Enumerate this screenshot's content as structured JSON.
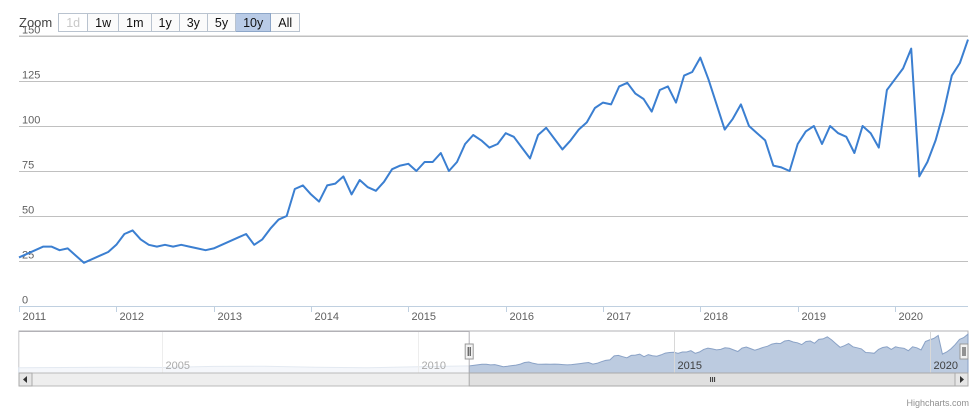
{
  "rangeSelector": {
    "label": "Zoom",
    "buttons": [
      {
        "label": "1d",
        "state": "disabled"
      },
      {
        "label": "1w",
        "state": "normal"
      },
      {
        "label": "1m",
        "state": "normal"
      },
      {
        "label": "1y",
        "state": "normal"
      },
      {
        "label": "3y",
        "state": "normal"
      },
      {
        "label": "5y",
        "state": "normal"
      },
      {
        "label": "10y",
        "state": "selected"
      },
      {
        "label": "All",
        "state": "normal"
      }
    ]
  },
  "credit": "Highcharts.com",
  "colors": {
    "line": "#3b7fd1",
    "grid": "#c0c0c0",
    "navigatorFill": "#bccbe0",
    "navigatorLine": "#8aa2c6",
    "outlineFill": "#e9eef5",
    "outlineLine": "#c2cfdf"
  },
  "chart_data": {
    "type": "line",
    "title": "",
    "xlabel": "",
    "ylabel": "",
    "xlim": [
      "2011-01-01",
      "2020-10-01"
    ],
    "ylim": [
      0,
      150
    ],
    "y_ticks": [
      0,
      25,
      50,
      75,
      100,
      125,
      150
    ],
    "x_ticks": [
      "2011",
      "2012",
      "2013",
      "2014",
      "2015",
      "2016",
      "2017",
      "2018",
      "2019",
      "2020"
    ],
    "grid": true,
    "legend": "none",
    "series": [
      {
        "x": [
          "2011-01-01",
          "2011-02-01",
          "2011-04-01",
          "2011-05-01",
          "2011-06-01",
          "2011-07-01",
          "2011-08-01",
          "2011-09-01",
          "2011-10-01",
          "2011-11-01",
          "2011-12-01",
          "2012-01-01",
          "2012-02-01",
          "2012-03-01",
          "2012-04-01",
          "2012-05-01",
          "2012-06-01",
          "2012-07-01",
          "2012-08-01",
          "2012-09-01",
          "2012-10-01",
          "2012-11-01",
          "2012-12-01",
          "2013-01-01",
          "2013-02-01",
          "2013-03-01",
          "2013-04-01",
          "2013-05-01",
          "2013-06-01",
          "2013-07-01",
          "2013-08-01",
          "2013-09-01",
          "2013-10-01",
          "2013-11-01",
          "2013-12-01",
          "2014-01-01",
          "2014-02-01",
          "2014-03-01",
          "2014-04-01",
          "2014-05-01",
          "2014-06-01",
          "2014-07-01",
          "2014-08-01",
          "2014-09-01",
          "2014-10-01",
          "2014-11-01",
          "2014-12-01",
          "2015-01-01",
          "2015-02-01",
          "2015-03-01",
          "2015-04-01",
          "2015-05-01",
          "2015-06-01",
          "2015-07-01",
          "2015-08-01",
          "2015-09-01",
          "2015-10-01",
          "2015-11-01",
          "2015-12-01",
          "2016-01-01",
          "2016-02-01",
          "2016-03-01",
          "2016-04-01",
          "2016-05-01",
          "2016-06-01",
          "2016-07-01",
          "2016-08-01",
          "2016-09-01",
          "2016-10-01",
          "2016-11-01",
          "2016-12-01",
          "2017-01-01",
          "2017-02-01",
          "2017-03-01",
          "2017-04-01",
          "2017-05-01",
          "2017-06-01",
          "2017-07-01",
          "2017-08-01",
          "2017-09-01",
          "2017-10-01",
          "2017-11-01",
          "2017-12-01",
          "2018-01-01",
          "2018-02-01",
          "2018-03-01",
          "2018-04-01",
          "2018-05-01",
          "2018-06-01",
          "2018-07-01",
          "2018-08-01",
          "2018-09-01",
          "2018-10-01",
          "2018-11-01",
          "2018-12-01",
          "2019-01-01",
          "2019-02-01",
          "2019-03-01",
          "2019-04-01",
          "2019-05-01",
          "2019-06-01",
          "2019-07-01",
          "2019-08-01",
          "2019-09-01",
          "2019-10-01",
          "2019-11-01",
          "2019-12-01",
          "2020-01-01",
          "2020-02-01",
          "2020-03-01",
          "2020-04-01",
          "2020-05-01",
          "2020-06-01",
          "2020-07-01",
          "2020-08-01",
          "2020-09-01",
          "2020-10-01"
        ],
        "y": [
          27,
          29,
          33,
          33,
          31,
          32,
          28,
          24,
          26,
          28,
          30,
          34,
          40,
          42,
          37,
          34,
          33,
          34,
          33,
          34,
          33,
          32,
          31,
          32,
          34,
          36,
          38,
          40,
          34,
          37,
          43,
          48,
          50,
          65,
          67,
          62,
          58,
          67,
          68,
          72,
          62,
          70,
          66,
          64,
          69,
          76,
          78,
          79,
          75,
          80,
          80,
          85,
          75,
          80,
          90,
          95,
          92,
          88,
          90,
          96,
          94,
          88,
          82,
          95,
          99,
          93,
          87,
          92,
          98,
          102,
          110,
          113,
          112,
          122,
          124,
          118,
          115,
          108,
          120,
          122,
          113,
          128,
          130,
          138,
          126,
          112,
          98,
          104,
          112,
          100,
          96,
          92,
          78,
          77,
          75,
          90,
          97,
          100,
          90,
          100,
          96,
          94,
          85,
          100,
          96,
          88,
          120,
          126,
          132,
          143,
          72,
          80,
          92,
          108,
          128,
          135,
          148
        ]
      }
    ],
    "navigator": {
      "x_ticks": [
        "2005",
        "2010",
        "2015",
        "2020"
      ],
      "selected_range": [
        "2011-01-01",
        "2020-10-01"
      ]
    }
  }
}
